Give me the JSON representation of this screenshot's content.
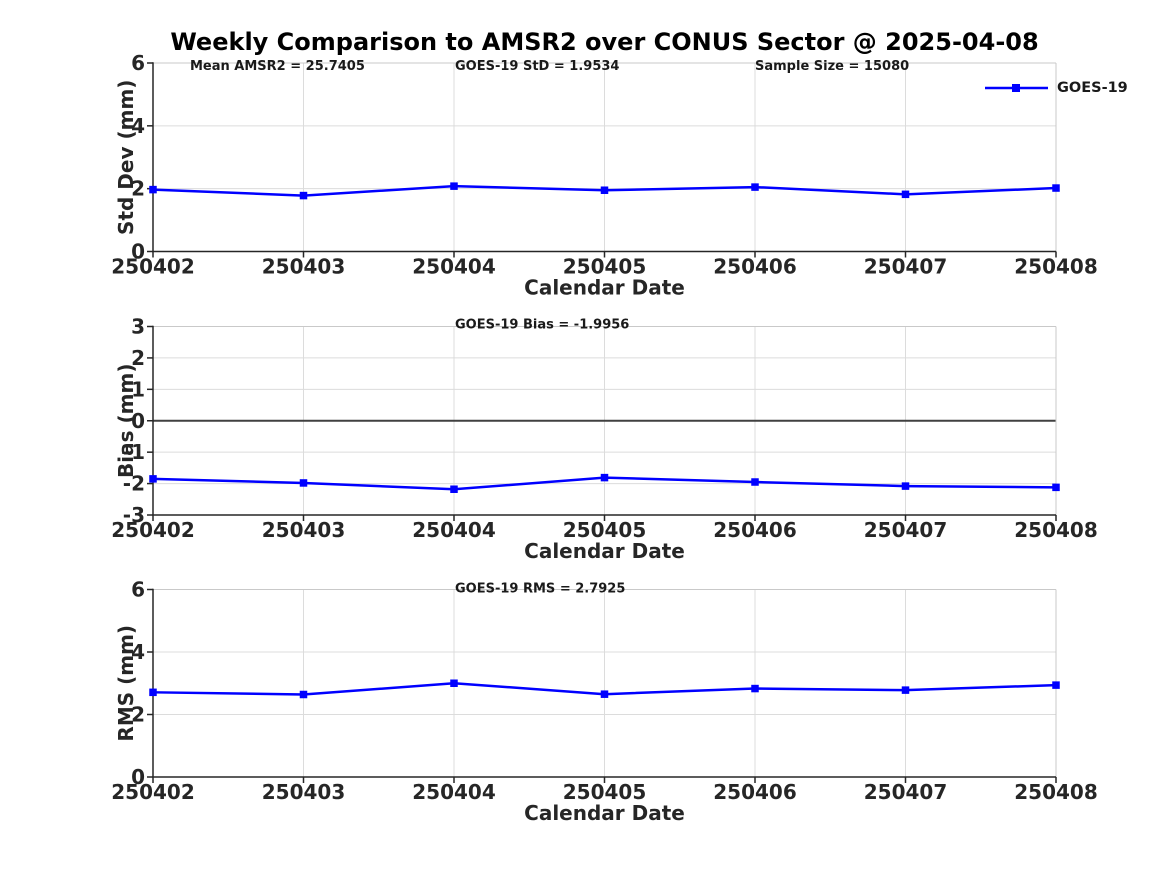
{
  "figure": {
    "title": "Weekly Comparison to AMSR2 over CONUS Sector @ 2025-04-08",
    "background": "#FFFFFF"
  },
  "colors": {
    "line": "#0000FF",
    "grid": "#DCDCDC",
    "axis": "#262626",
    "box": "#C9C9C9",
    "zero_line": "#404040",
    "text": "#1A1A1A"
  },
  "chart_data": [
    {
      "type": "line",
      "name": "std-dev",
      "annotations": [
        {
          "text": "Mean AMSR2 = 25.7405"
        },
        {
          "text": "GOES-19 StD = 1.9534"
        },
        {
          "text": "Sample Size = 15080"
        }
      ],
      "xlabel": "Calendar Date",
      "ylabel": "Std Dev (mm)",
      "categories": [
        "250402",
        "250403",
        "250404",
        "250405",
        "250406",
        "250407",
        "250408"
      ],
      "ylim": [
        0,
        6
      ],
      "yticks": [
        0,
        2,
        4,
        6
      ],
      "grid": true,
      "zero_line": false,
      "legend": {
        "label": "GOES-19"
      },
      "series": [
        {
          "name": "GOES-19",
          "color": "#0000FF",
          "marker": "square",
          "values": [
            1.97,
            1.78,
            2.08,
            1.95,
            2.05,
            1.82,
            2.02
          ]
        }
      ]
    },
    {
      "type": "line",
      "name": "bias",
      "annotations": [
        {
          "text": "GOES-19 Bias  = -1.9956"
        }
      ],
      "xlabel": "Calendar Date",
      "ylabel": "Bias (mm)",
      "categories": [
        "250402",
        "250403",
        "250404",
        "250405",
        "250406",
        "250407",
        "250408"
      ],
      "ylim": [
        -3,
        3
      ],
      "yticks": [
        -3,
        -2,
        -1,
        0,
        1,
        2,
        3
      ],
      "grid": true,
      "zero_line": true,
      "series": [
        {
          "name": "GOES-19",
          "color": "#0000FF",
          "marker": "square",
          "values": [
            -1.85,
            -1.98,
            -2.18,
            -1.81,
            -1.95,
            -2.08,
            -2.12
          ]
        }
      ]
    },
    {
      "type": "line",
      "name": "rms",
      "annotations": [
        {
          "text": "GOES-19 RMS = 2.7925"
        }
      ],
      "xlabel": "Calendar Date",
      "ylabel": "RMS (mm)",
      "categories": [
        "250402",
        "250403",
        "250404",
        "250405",
        "250406",
        "250407",
        "250408"
      ],
      "ylim": [
        0,
        6
      ],
      "yticks": [
        0,
        2,
        4,
        6
      ],
      "grid": true,
      "zero_line": false,
      "series": [
        {
          "name": "GOES-19",
          "color": "#0000FF",
          "marker": "square",
          "values": [
            2.71,
            2.64,
            3.0,
            2.65,
            2.83,
            2.78,
            2.94
          ]
        }
      ]
    }
  ]
}
